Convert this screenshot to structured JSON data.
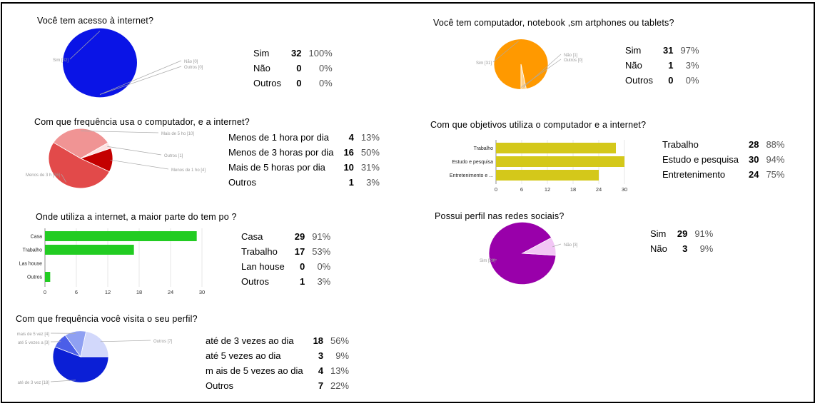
{
  "chart_data": [
    {
      "type": "pie",
      "title": "Você tem acesso à internet?",
      "categories": [
        "Sim",
        "Não",
        "Outros"
      ],
      "values": [
        32,
        0,
        0
      ],
      "percents": [
        "100%",
        "0%",
        "0%"
      ],
      "slice_labels": [
        "Sim [32]",
        "Não [0]",
        "Outros [0]"
      ],
      "colors": [
        "#0a14e6",
        "#6f74ff",
        "#b7baff"
      ]
    },
    {
      "type": "pie",
      "title": "Você tem computador, notebook ,sm artphones ou tablets?",
      "categories": [
        "Sim",
        "Não",
        "Outros"
      ],
      "values": [
        31,
        1,
        0
      ],
      "percents": [
        "97%",
        "3%",
        "0%"
      ],
      "slice_labels": [
        "Sim [31]",
        "Não [1]",
        "Outros [0]"
      ],
      "colors": [
        "#ff9900",
        "#ffd08a",
        "#ffe6bf"
      ]
    },
    {
      "type": "pie",
      "title": "Com que frequência usa o computador, e a internet?",
      "categories": [
        "Menos de 1 hora por dia",
        "Menos de 3 horas por dia",
        "Mais de 5 horas por dia",
        "Outros"
      ],
      "values": [
        4,
        16,
        10,
        1
      ],
      "percents": [
        "13%",
        "50%",
        "31%",
        "3%"
      ],
      "slice_labels": [
        "Menos de 1 ho [4]",
        "Menos de 3 h [16]",
        "Mais de 5 ho [10]",
        "Outros [1]"
      ],
      "colors": [
        "#c40000",
        "#e24a4a",
        "#f09494",
        "#fde2e2"
      ]
    },
    {
      "type": "bar",
      "orientation": "horizontal",
      "title": "Com que objetivos utiliza o computador e a internet?",
      "categories": [
        "Trabalho",
        "Estudo e pesquisa",
        "Entretenimento"
      ],
      "axis_labels": [
        "Trabalho",
        "Estudo e pesquisa",
        "Entretenimento e ..."
      ],
      "values": [
        28,
        30,
        24
      ],
      "percents": [
        "88%",
        "94%",
        "75%"
      ],
      "xlim": [
        0,
        30
      ],
      "ticks": [
        0,
        6,
        12,
        18,
        24,
        30
      ],
      "grid": true,
      "color": "#d4c81a"
    },
    {
      "type": "bar",
      "orientation": "horizontal",
      "title": "Onde utiliza a internet, a maior parte do tem po ?",
      "categories": [
        "Casa",
        "Trabalho",
        "Lan house",
        "Outros"
      ],
      "axis_labels": [
        "Casa",
        "Trabalho",
        "Las house",
        "Outros"
      ],
      "values": [
        29,
        17,
        0,
        1
      ],
      "percents": [
        "91%",
        "53%",
        "0%",
        "3%"
      ],
      "xlim": [
        0,
        30
      ],
      "ticks": [
        0,
        6,
        12,
        18,
        24,
        30
      ],
      "grid": true,
      "color": "#22cc22"
    },
    {
      "type": "pie",
      "title": "Possui perfil nas redes sociais?",
      "categories": [
        "Sim",
        "Não"
      ],
      "values": [
        29,
        3
      ],
      "percents": [
        "91%",
        "9%"
      ],
      "slice_labels": [
        "Sim [29]",
        "Não [3]"
      ],
      "colors": [
        "#9900aa",
        "#f2c6f5"
      ]
    },
    {
      "type": "pie",
      "title": "Com que frequência você visita o seu perfil?",
      "categories": [
        "até de 3 vezes ao dia",
        "até 5 vezes ao dia",
        "m ais de 5 vezes ao dia",
        "Outros"
      ],
      "values": [
        18,
        3,
        4,
        7
      ],
      "percents": [
        "56%",
        "9%",
        "13%",
        "22%"
      ],
      "slice_labels": [
        "até de 3 vez [18]",
        "até 5 vezes a [3]",
        "mais de 5 vez [4]",
        "Outros [7]"
      ],
      "colors": [
        "#0b1fd6",
        "#4b5ee8",
        "#8fa0f2",
        "#d2d8fb"
      ]
    }
  ]
}
